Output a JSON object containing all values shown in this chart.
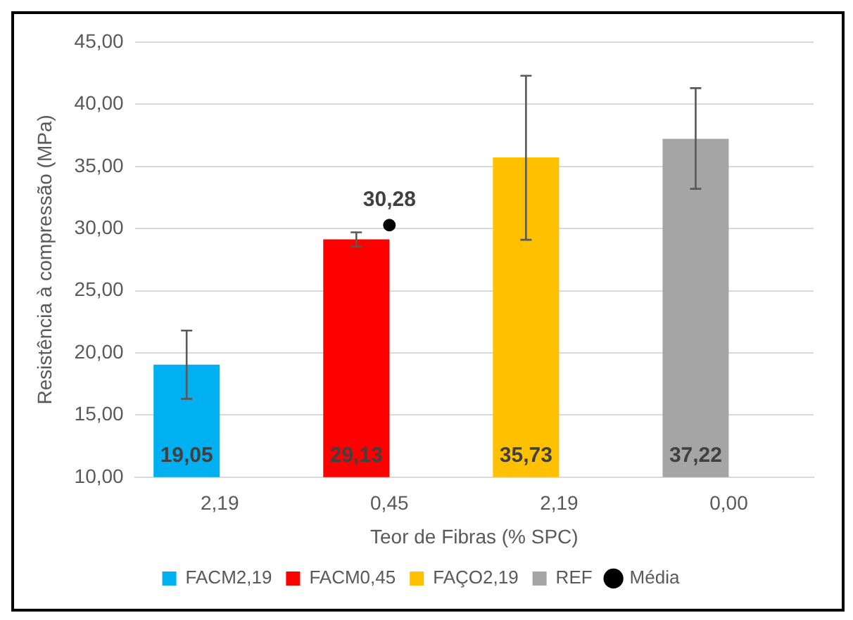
{
  "chart_data": {
    "type": "bar",
    "xlabel": "Teor de Fibras (% SPC)",
    "ylabel": "Resistência à compressão (MPa)",
    "categories": [
      "2,19",
      "0,45",
      "2,19",
      "0,00"
    ],
    "series": [
      {
        "name": "FACM2,19",
        "color": "#00b0f0",
        "values": [
          19.05,
          null,
          null,
          null
        ],
        "errors": [
          [
            16.3,
            21.8
          ],
          null,
          null,
          null
        ],
        "value_labels": [
          "19,05",
          null,
          null,
          null
        ]
      },
      {
        "name": "FACM0,45",
        "color": "#ff0000",
        "values": [
          null,
          29.13,
          null,
          null
        ],
        "errors": [
          null,
          [
            28.55,
            29.7
          ],
          null,
          null
        ],
        "value_labels": [
          null,
          "29,13",
          null,
          null
        ]
      },
      {
        "name": "FAÇO2,19",
        "color": "#ffc000",
        "values": [
          null,
          null,
          35.73,
          null
        ],
        "errors": [
          null,
          null,
          [
            29.1,
            42.3
          ],
          null
        ],
        "value_labels": [
          null,
          null,
          "35,73",
          null
        ]
      },
      {
        "name": "REF",
        "color": "#a5a5a5",
        "values": [
          null,
          null,
          null,
          37.22
        ],
        "errors": [
          null,
          null,
          null,
          [
            33.2,
            41.3
          ]
        ],
        "value_labels": [
          null,
          null,
          null,
          "37,22"
        ]
      },
      {
        "name": "Média",
        "type": "scatter",
        "color": "#000000",
        "values": [
          null,
          30.28,
          null,
          null
        ],
        "value_labels": [
          null,
          "30,28",
          null,
          null
        ]
      }
    ],
    "ylim": [
      10,
      45
    ],
    "yticks": [
      {
        "value": 10,
        "label": "10,00"
      },
      {
        "value": 15,
        "label": "15,00"
      },
      {
        "value": 20,
        "label": "20,00"
      },
      {
        "value": 25,
        "label": "25,00"
      },
      {
        "value": 30,
        "label": "30,00"
      },
      {
        "value": 35,
        "label": "35,00"
      },
      {
        "value": 40,
        "label": "40,00"
      },
      {
        "value": 45,
        "label": "45,00"
      }
    ],
    "grid": "y",
    "legend": "bottom",
    "marker": "circle"
  }
}
